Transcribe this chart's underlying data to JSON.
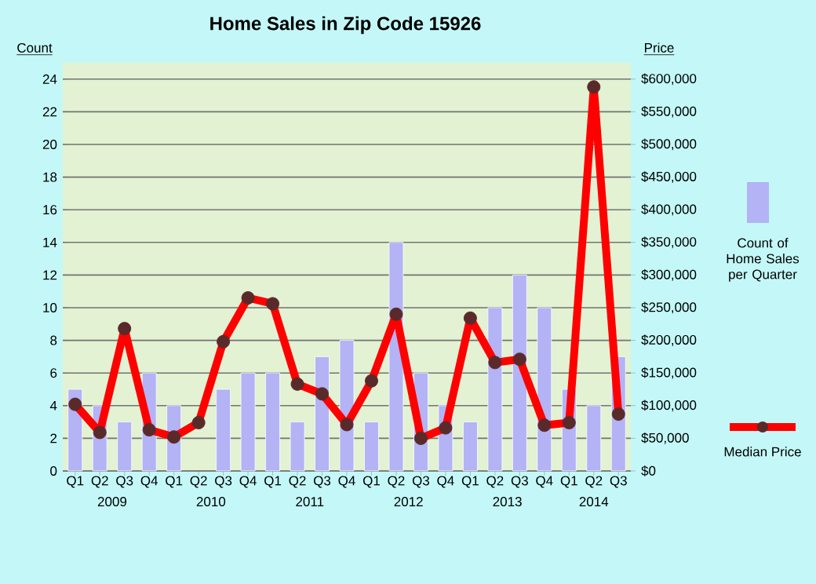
{
  "chart_data": {
    "type": "bar",
    "title": "Home Sales in Zip Code 15926",
    "ylabel": "Count",
    "y2label": "Price",
    "categories": [
      "Q1",
      "Q2",
      "Q3",
      "Q4",
      "Q1",
      "Q2",
      "Q3",
      "Q4",
      "Q1",
      "Q2",
      "Q3",
      "Q4",
      "Q1",
      "Q2",
      "Q3",
      "Q4",
      "Q1",
      "Q2",
      "Q3",
      "Q4",
      "Q1",
      "Q2",
      "Q3"
    ],
    "annotations": [
      "2009",
      "2010",
      "2011",
      "2012",
      "2013",
      "2014"
    ],
    "series": [
      {
        "name": "Count of Home Sales per Quarter",
        "color": "#b3b3f5",
        "values": [
          5,
          4,
          3,
          6,
          4,
          null,
          5,
          6,
          6,
          3,
          7,
          8,
          3,
          14,
          6,
          4,
          3,
          10,
          12,
          10,
          5,
          4,
          7
        ]
      },
      {
        "name": "Median Price",
        "type": "line",
        "axis": "y2",
        "color": "#ff0000",
        "values": [
          102000,
          59000,
          218000,
          63000,
          52000,
          74000,
          198000,
          265000,
          256000,
          133000,
          118000,
          71000,
          138000,
          240000,
          50000,
          66000,
          234000,
          166000,
          171000,
          70000,
          74000,
          588000,
          87000
        ]
      }
    ],
    "ylim": [
      0,
      25
    ],
    "yticks": [
      0,
      2,
      4,
      6,
      8,
      10,
      12,
      14,
      16,
      18,
      20,
      22,
      24
    ],
    "y2lim": [
      0,
      625000
    ],
    "y2ticks": [
      {
        "value": 0,
        "label": "$0"
      },
      {
        "value": 50000,
        "label": "$50,000"
      },
      {
        "value": 100000,
        "label": "$100,000"
      },
      {
        "value": 150000,
        "label": "$150,000"
      },
      {
        "value": 200000,
        "label": "$200,000"
      },
      {
        "value": 250000,
        "label": "$250,000"
      },
      {
        "value": 300000,
        "label": "$300,000"
      },
      {
        "value": 350000,
        "label": "$350,000"
      },
      {
        "value": 400000,
        "label": "$400,000"
      },
      {
        "value": 450000,
        "label": "$450,000"
      },
      {
        "value": 500000,
        "label": "$500,000"
      },
      {
        "value": 550000,
        "label": "$550,000"
      },
      {
        "value": 600000,
        "label": "$600,000"
      }
    ],
    "grid": "y",
    "legend": "right",
    "marker": "circle"
  }
}
